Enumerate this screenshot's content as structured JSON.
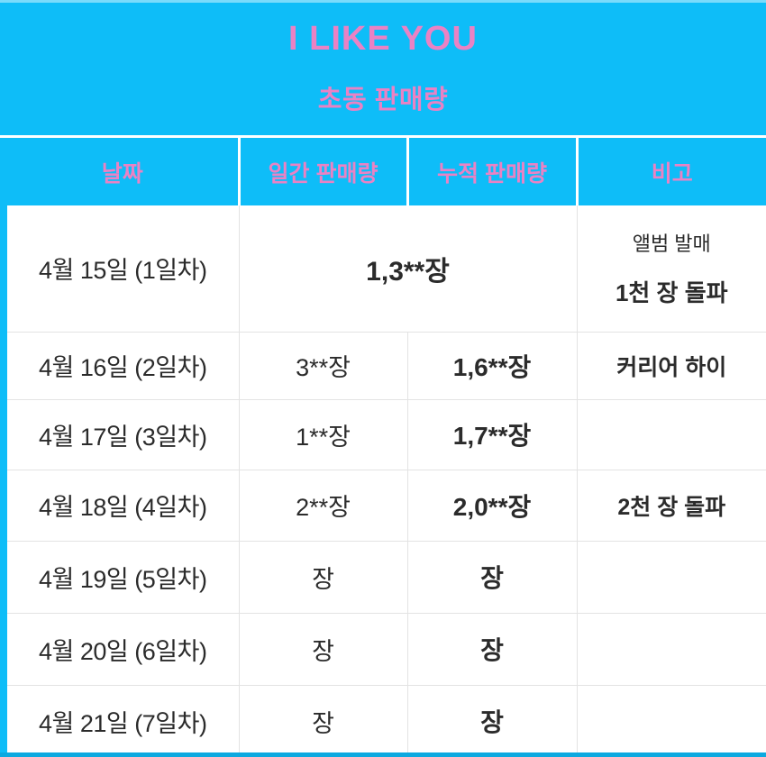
{
  "page": {
    "title": "I LIKE YOU",
    "subtitle": "초동 판매량"
  },
  "colors": {
    "cyan": "#0EBDF8",
    "pink": "#EA82C4",
    "text": "#2B2B2B",
    "border": "#E3E3E3",
    "strip": "#0CA9E0"
  },
  "table": {
    "columns": [
      "날짜",
      "일간 판매량",
      "누적 판매량",
      "비고"
    ],
    "rows": [
      {
        "date": "4월 15일 (1일차)",
        "combined_sales": "1,3**장",
        "note_line1": "앨범 발매",
        "note_line2": "1천 장 돌파"
      },
      {
        "date": "4월 16일 (2일차)",
        "daily": "3**장",
        "cumulative": "1,6**장",
        "note": "커리어 하이"
      },
      {
        "date": "4월 17일 (3일차)",
        "daily": "1**장",
        "cumulative": "1,7**장",
        "note": ""
      },
      {
        "date": "4월 18일 (4일차)",
        "daily": "2**장",
        "cumulative": "2,0**장",
        "note": "2천 장 돌파"
      },
      {
        "date": "4월 19일 (5일차)",
        "daily": "장",
        "cumulative": "장",
        "note": ""
      },
      {
        "date": "4월 20일 (6일차)",
        "daily": "장",
        "cumulative": "장",
        "note": ""
      },
      {
        "date": "4월 21일 (7일차)",
        "daily": "장",
        "cumulative": "장",
        "note": ""
      }
    ]
  }
}
